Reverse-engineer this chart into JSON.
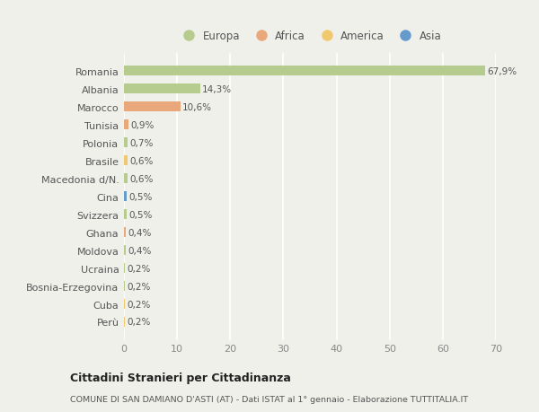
{
  "countries": [
    "Romania",
    "Albania",
    "Marocco",
    "Tunisia",
    "Polonia",
    "Brasile",
    "Macedonia d/N.",
    "Cina",
    "Svizzera",
    "Ghana",
    "Moldova",
    "Ucraina",
    "Bosnia-Erzegovina",
    "Cuba",
    "Perù"
  ],
  "values": [
    67.9,
    14.3,
    10.6,
    0.9,
    0.7,
    0.6,
    0.6,
    0.5,
    0.5,
    0.4,
    0.4,
    0.2,
    0.2,
    0.2,
    0.2
  ],
  "labels": [
    "67,9%",
    "14,3%",
    "10,6%",
    "0,9%",
    "0,7%",
    "0,6%",
    "0,6%",
    "0,5%",
    "0,5%",
    "0,4%",
    "0,4%",
    "0,2%",
    "0,2%",
    "0,2%",
    "0,2%"
  ],
  "continents": [
    "Europa",
    "Europa",
    "Africa",
    "Africa",
    "Europa",
    "America",
    "Europa",
    "Asia",
    "Europa",
    "Africa",
    "Europa",
    "Europa",
    "Europa",
    "America",
    "America"
  ],
  "colors": {
    "Europa": "#b5cc8e",
    "Africa": "#e8a87c",
    "America": "#f0c96e",
    "Asia": "#6699cc"
  },
  "background_color": "#f0f0eb",
  "title": "Cittadini Stranieri per Cittadinanza",
  "subtitle": "COMUNE DI SAN DAMIANO D'ASTI (AT) - Dati ISTAT al 1° gennaio - Elaborazione TUTTITALIA.IT",
  "xlim": [
    0,
    70
  ],
  "xticks": [
    0,
    10,
    20,
    30,
    40,
    50,
    60,
    70
  ],
  "legend_order": [
    "Europa",
    "Africa",
    "America",
    "Asia"
  ]
}
